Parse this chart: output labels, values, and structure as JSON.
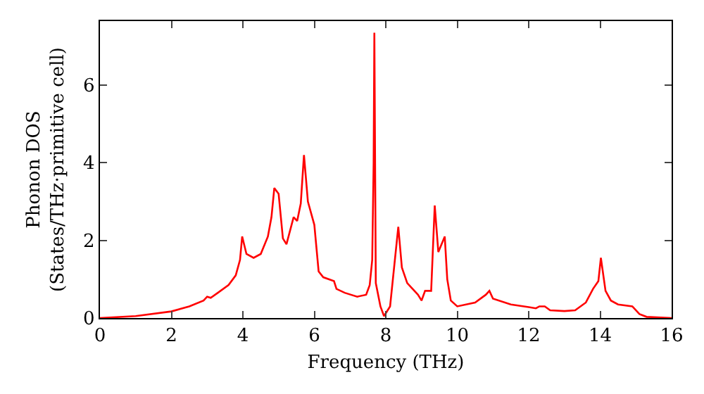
{
  "chart_data": {
    "type": "line",
    "xlabel": "Frequency (THz)",
    "ylabel": "Phonon DOS\n(States/THz·primitive cell)",
    "x": [
      0,
      1,
      2,
      2.5,
      2.9,
      3.0,
      3.1,
      3.3,
      3.6,
      3.8,
      3.92,
      3.98,
      4.1,
      4.3,
      4.5,
      4.7,
      4.8,
      4.88,
      5.0,
      5.12,
      5.22,
      5.42,
      5.52,
      5.62,
      5.71,
      5.82,
      6.0,
      6.12,
      6.25,
      6.55,
      6.62,
      6.85,
      7.2,
      7.45,
      7.55,
      7.62,
      7.66,
      7.68,
      7.72,
      7.85,
      7.95,
      8.12,
      8.35,
      8.45,
      8.6,
      8.9,
      9.0,
      9.1,
      9.27,
      9.37,
      9.47,
      9.65,
      9.72,
      9.82,
      10.0,
      10.5,
      10.8,
      10.9,
      11.0,
      11.5,
      12.0,
      12.2,
      12.3,
      12.45,
      12.6,
      13.0,
      13.3,
      13.6,
      13.8,
      13.95,
      14.02,
      14.15,
      14.3,
      14.5,
      14.9,
      15.1,
      15.3,
      16
    ],
    "series": [
      {
        "color": "#ff0000",
        "values": [
          0,
          0.05,
          0.17,
          0.3,
          0.45,
          0.55,
          0.52,
          0.65,
          0.85,
          1.1,
          1.5,
          2.1,
          1.65,
          1.55,
          1.65,
          2.1,
          2.6,
          3.35,
          3.2,
          2.05,
          1.9,
          2.6,
          2.5,
          2.95,
          4.2,
          3.0,
          2.4,
          1.2,
          1.05,
          0.95,
          0.75,
          0.65,
          0.55,
          0.6,
          0.85,
          1.5,
          4.0,
          7.35,
          0.9,
          0.3,
          0.05,
          0.3,
          2.35,
          1.3,
          0.9,
          0.6,
          0.45,
          0.7,
          0.7,
          2.9,
          1.7,
          2.1,
          1.0,
          0.45,
          0.3,
          0.4,
          0.6,
          0.7,
          0.5,
          0.35,
          0.28,
          0.25,
          0.3,
          0.3,
          0.2,
          0.18,
          0.2,
          0.4,
          0.75,
          0.95,
          1.55,
          0.7,
          0.45,
          0.35,
          0.3,
          0.1,
          0.03,
          0
        ]
      }
    ],
    "xlim": [
      0,
      16
    ],
    "ylim": [
      0,
      7.65
    ],
    "xticks": [
      0,
      2,
      4,
      6,
      8,
      10,
      12,
      14,
      16
    ],
    "yticks": [
      0,
      2,
      4,
      6
    ],
    "grid": false,
    "marker": "none",
    "line_style": "solid"
  }
}
